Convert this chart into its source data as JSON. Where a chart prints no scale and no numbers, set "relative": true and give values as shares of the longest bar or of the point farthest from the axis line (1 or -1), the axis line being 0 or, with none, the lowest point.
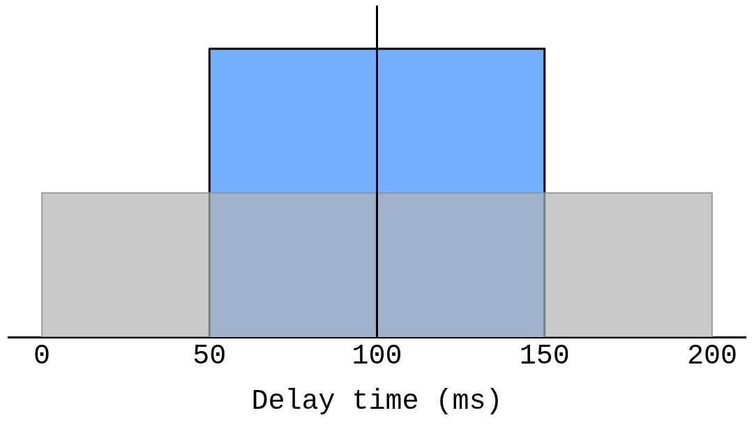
{
  "chart_data": {
    "type": "area",
    "xlabel": "Delay time (ms)",
    "relative": true,
    "series": [
      {
        "color": "#74aefe",
        "x": [
          50,
          50,
          150,
          150
        ],
        "values": [
          0,
          1,
          1,
          0
        ]
      },
      {
        "color": "#b4b4b4",
        "x": [
          0,
          0,
          200,
          200
        ],
        "values": [
          0,
          0.5,
          0.5,
          0
        ]
      }
    ],
    "xlim": [
      -10,
      210
    ],
    "xticks": [
      0,
      50,
      100,
      150,
      200
    ],
    "grid": false,
    "legend": false,
    "ref_lines": [
      {
        "axis": "x",
        "value": 100,
        "color": "#000000"
      }
    ]
  }
}
